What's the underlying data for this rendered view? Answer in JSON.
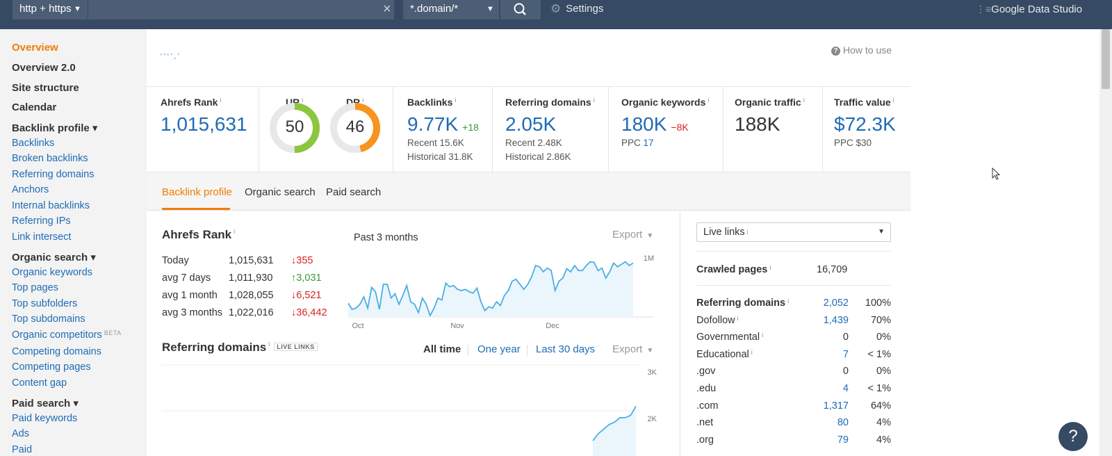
{
  "topbar": {
    "mode": "http + https",
    "url_value": "",
    "url_placeholder": "",
    "scope": "*.domain/*",
    "settings_label": "Settings",
    "gds_label": "Google Data Studio"
  },
  "sidebar": {
    "overview": "Overview",
    "overview2": "Overview 2.0",
    "site_structure": "Site structure",
    "calendar": "Calendar",
    "backlink_profile": "Backlink profile ▾",
    "backlinks": "Backlinks",
    "broken_backlinks": "Broken backlinks",
    "referring_domains": "Referring domains",
    "anchors": "Anchors",
    "internal_backlinks": "Internal backlinks",
    "referring_ips": "Referring IPs",
    "link_intersect": "Link intersect",
    "organic_search": "Organic search ▾",
    "organic_keywords": "Organic keywords",
    "top_pages": "Top pages",
    "top_subfolders": "Top subfolders",
    "top_subdomains": "Top subdomains",
    "organic_competitors": "Organic competitors",
    "beta": "BETA",
    "competing_domains": "Competing domains",
    "competing_pages": "Competing pages",
    "content_gap": "Content gap",
    "paid_search": "Paid search ▾",
    "paid_keywords": "Paid keywords",
    "ads": "Ads",
    "paid_cut": "Paid"
  },
  "header": {
    "how_to_use": "How to use",
    "domain_text": "‘ ' ‘ ’ , ’"
  },
  "metrics": {
    "ahrefs_rank_label": "Ahrefs Rank",
    "ahrefs_rank_value": "1,015,631",
    "ur_label": "UR",
    "ur_value": "50",
    "ur_level": 50,
    "dr_label": "DR",
    "dr_value": "46",
    "dr_level": 46,
    "backlinks_label": "Backlinks",
    "backlinks_value": "9.77K",
    "backlinks_delta": "+18",
    "backlinks_recent": "Recent 15.6K",
    "backlinks_historical": "Historical 31.8K",
    "rd_label": "Referring domains",
    "rd_value": "2.05K",
    "rd_recent": "Recent 2.48K",
    "rd_historical": "Historical 2.86K",
    "ok_label": "Organic keywords",
    "ok_value": "180K",
    "ok_delta": "−8K",
    "ok_ppc_label": "PPC",
    "ok_ppc_value": "17",
    "ot_label": "Organic traffic",
    "ot_value": "188K",
    "tv_label": "Traffic value",
    "tv_value": "$72.3K",
    "tv_ppc": "PPC $30"
  },
  "tabs": {
    "backlink_profile": "Backlink profile",
    "organic_search": "Organic search",
    "paid_search": "Paid search"
  },
  "ahrefs_rank_section": {
    "title": "Ahrefs Rank",
    "past_label": "Past 3 months",
    "export_label": "Export",
    "rows": [
      {
        "label": "Today",
        "value": "1,015,631",
        "change": "355",
        "dir": "down"
      },
      {
        "label": "avg 7 days",
        "value": "1,011,930",
        "change": "3,031",
        "dir": "up"
      },
      {
        "label": "avg 1 month",
        "value": "1,028,055",
        "change": "6,521",
        "dir": "down"
      },
      {
        "label": "avg 3 months",
        "value": "1,022,016",
        "change": "36,442",
        "dir": "down"
      }
    ]
  },
  "rd_section": {
    "title": "Referring domains",
    "badge": "LIVE LINKS",
    "range_all": "All time",
    "range_year": "One year",
    "range_30": "Last 30 days",
    "export_label": "Export"
  },
  "chart_data": [
    {
      "type": "area",
      "x_tick_labels": [
        "Oct",
        "Nov",
        "Dec"
      ],
      "y_tick_labels": [
        "1M"
      ],
      "y_orientation": "inverted",
      "series": [
        {
          "values": [
            0.2,
            0.1,
            0.12,
            0.18,
            0.3,
            0.12,
            0.45,
            0.38,
            0.1,
            0.5,
            0.5,
            0.28,
            0.35,
            0.18,
            0.32,
            0.48,
            0.22,
            0.18,
            0.05,
            0.28,
            0.18,
            0.0,
            0.12,
            0.28,
            0.25,
            0.52,
            0.46,
            0.48,
            0.42,
            0.4,
            0.42,
            0.38,
            0.36,
            0.44,
            0.22,
            0.08,
            0.14,
            0.12,
            0.22,
            0.16,
            0.32,
            0.4,
            0.55,
            0.58,
            0.5,
            0.42,
            0.5,
            0.62,
            0.8,
            0.78,
            0.7,
            0.76,
            0.72,
            0.4,
            0.55,
            0.6,
            0.75,
            0.7,
            0.8,
            0.72,
            0.72,
            0.8,
            0.86,
            0.85,
            0.72,
            0.76,
            0.6,
            0.7,
            0.84,
            0.78,
            0.82,
            0.86,
            0.8,
            0.84
          ]
        }
      ]
    },
    {
      "type": "area",
      "y_tick_labels": [
        "3K",
        "2K"
      ],
      "series": [
        {
          "values": [
            1.35,
            1.5,
            1.6,
            1.7,
            1.75,
            1.85,
            1.85,
            1.9,
            2.1
          ]
        }
      ]
    }
  ],
  "right_panel": {
    "select_label": "Live links",
    "crawled_label": "Crawled pages",
    "crawled_value": "16,709",
    "rows": [
      {
        "label": "Referring domains",
        "count": "2,052",
        "pct": "100%",
        "bold": true
      },
      {
        "label": "Dofollow",
        "count": "1,439",
        "pct": "70%",
        "info": true
      },
      {
        "label": "Governmental",
        "count": "0",
        "pct": "0%",
        "info": true
      },
      {
        "label": "Educational",
        "count": "7",
        "pct": "< 1%",
        "info": true
      },
      {
        "label": ".gov",
        "count": "0",
        "pct": "0%"
      },
      {
        "label": ".edu",
        "count": "4",
        "pct": "< 1%"
      },
      {
        "label": ".com",
        "count": "1,317",
        "pct": "64%"
      },
      {
        "label": ".net",
        "count": "80",
        "pct": "4%"
      },
      {
        "label": ".org",
        "count": "79",
        "pct": "4%"
      }
    ]
  },
  "help_label": "?",
  "colors": {
    "topbar": "#364a63",
    "accent": "#f07c00",
    "link": "#1f6bb5",
    "ur_ring": "#8cc63f",
    "dr_ring": "#f7931e",
    "chart_line": "#4aaee3",
    "negative": "#d9241c",
    "positive": "#3a9a3a"
  }
}
